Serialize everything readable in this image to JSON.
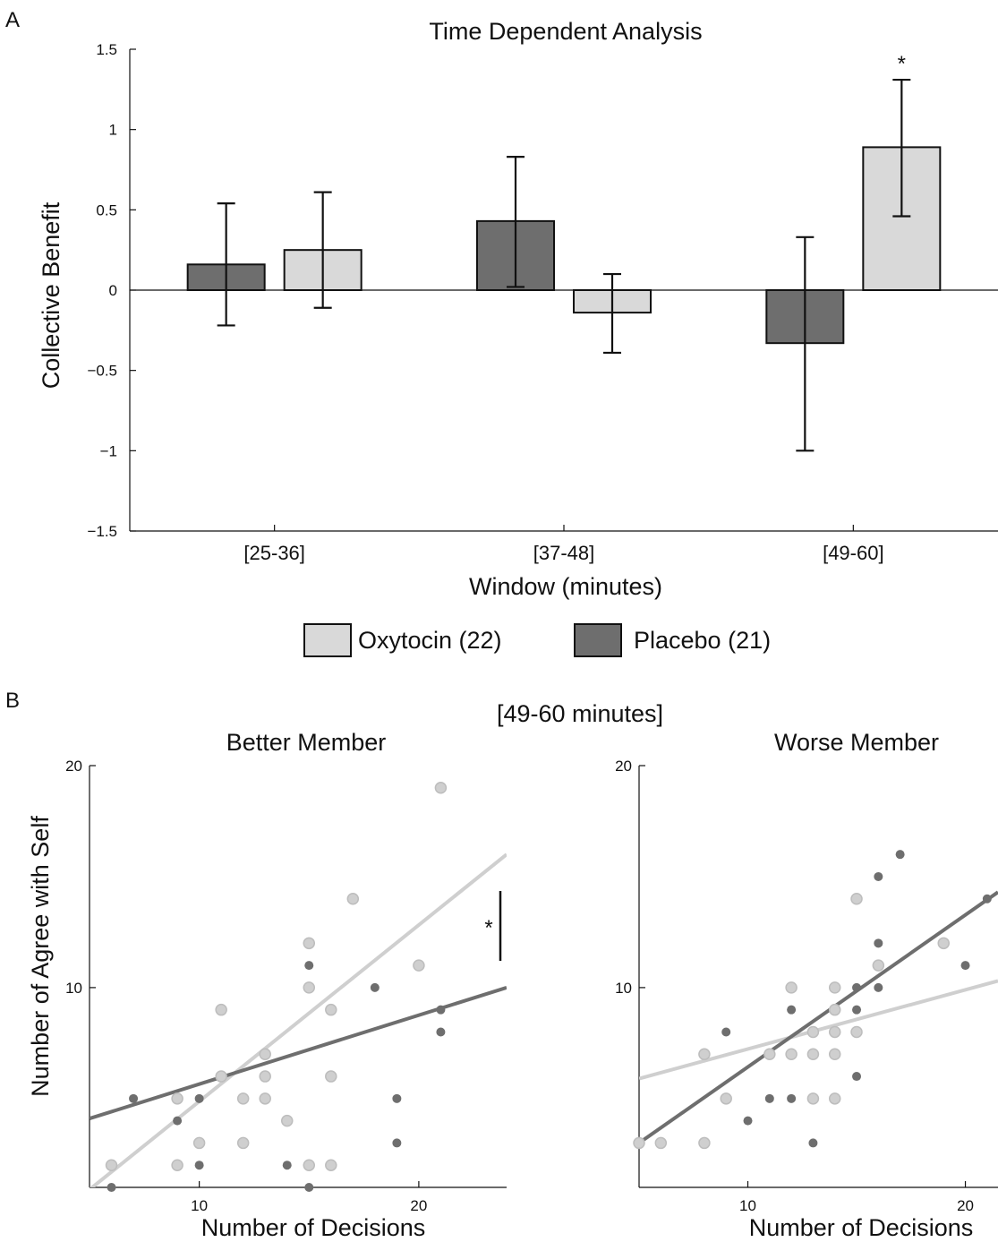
{
  "panel_a": {
    "letter": "A",
    "chart_data": {
      "type": "bar",
      "title": "Time Dependent Analysis",
      "xlabel": "Window (minutes)",
      "ylabel": "Collective Benefit",
      "categories": [
        "[25-36]",
        "[37-48]",
        "[49-60]"
      ],
      "ylim": [
        -1.5,
        1.5
      ],
      "yticks": [
        1.5,
        1,
        0.5,
        0,
        -0.5,
        -1,
        -1.5
      ],
      "ytick_labels": [
        "1.5",
        "1",
        "0.5",
        "0",
        "−0.5",
        "−1",
        "−1.5"
      ],
      "series": [
        {
          "name": "Placebo (21)",
          "color": "#6e6e6e",
          "values": [
            0.16,
            0.43,
            -0.33
          ],
          "err_low": [
            -0.22,
            0.02,
            -1.0
          ],
          "err_high": [
            0.54,
            0.83,
            0.33
          ]
        },
        {
          "name": "Oxytocin (22)",
          "color": "#d9d9d9",
          "values": [
            0.25,
            -0.14,
            0.89
          ],
          "err_low": [
            -0.11,
            -0.39,
            0.46
          ],
          "err_high": [
            0.61,
            0.1,
            1.31
          ]
        }
      ],
      "annotations": [
        {
          "text": "*",
          "category": "[49-60]",
          "series": "Oxytocin (22)"
        }
      ],
      "grid": false
    },
    "legend": [
      {
        "label": "Oxytocin (22)",
        "color": "#d9d9d9"
      },
      {
        "label": "Placebo (21)",
        "color": "#6e6e6e"
      }
    ]
  },
  "panel_b": {
    "letter": "B",
    "title": "[49-60 minutes]",
    "ylabel": "Number of Agree with Self",
    "xlabel": "Number of Decisions",
    "chart_data": [
      {
        "type": "scatter",
        "title": "Better Member",
        "xlabel": "Number of Decisions",
        "ylabel": "Number of Agree with Self",
        "xlim": [
          5,
          24
        ],
        "ylim": [
          1,
          20
        ],
        "xticks": [
          10,
          20
        ],
        "yticks": [
          10,
          20
        ],
        "series": [
          {
            "name": "Oxytocin",
            "color": "#cfcfcf",
            "points": [
              [
                6,
                2
              ],
              [
                9,
                2
              ],
              [
                9,
                5
              ],
              [
                10,
                3
              ],
              [
                11,
                9
              ],
              [
                11,
                6
              ],
              [
                12,
                5
              ],
              [
                12,
                3
              ],
              [
                13,
                7
              ],
              [
                13,
                6
              ],
              [
                13,
                5
              ],
              [
                14,
                4
              ],
              [
                15,
                12
              ],
              [
                15,
                10
              ],
              [
                15,
                2
              ],
              [
                16,
                9
              ],
              [
                16,
                6
              ],
              [
                16,
                2
              ],
              [
                17,
                14
              ],
              [
                20,
                11
              ],
              [
                21,
                19
              ]
            ],
            "fit": [
              [
                5,
                0.9
              ],
              [
                24,
                16
              ]
            ]
          },
          {
            "name": "Placebo",
            "color": "#6e6e6e",
            "points": [
              [
                6,
                1
              ],
              [
                7,
                5
              ],
              [
                9,
                4
              ],
              [
                10,
                5
              ],
              [
                10,
                2
              ],
              [
                14,
                2
              ],
              [
                15,
                11
              ],
              [
                15,
                1
              ],
              [
                18,
                10
              ],
              [
                19,
                5
              ],
              [
                19,
                3
              ],
              [
                21,
                9
              ],
              [
                21,
                8
              ]
            ],
            "fit": [
              [
                5,
                4.1
              ],
              [
                24,
                10
              ]
            ]
          }
        ],
        "annotations": [
          {
            "text": "*"
          }
        ]
      },
      {
        "type": "scatter",
        "title": "Worse Member",
        "xlabel": "Number of Decisions",
        "ylabel": "Number of Agree with Self",
        "xlim": [
          5,
          21.5
        ],
        "ylim": [
          1,
          20
        ],
        "xticks": [
          10,
          20
        ],
        "yticks": [
          10,
          20
        ],
        "series": [
          {
            "name": "Oxytocin",
            "color": "#cfcfcf",
            "points": [
              [
                5,
                3
              ],
              [
                6,
                3
              ],
              [
                8,
                3
              ],
              [
                8,
                7
              ],
              [
                9,
                5
              ],
              [
                11,
                7
              ],
              [
                12,
                10
              ],
              [
                12,
                7
              ],
              [
                13,
                8
              ],
              [
                13,
                7
              ],
              [
                13,
                5
              ],
              [
                14,
                10
              ],
              [
                14,
                9
              ],
              [
                14,
                8
              ],
              [
                14,
                7
              ],
              [
                14,
                5
              ],
              [
                15,
                14
              ],
              [
                15,
                8
              ],
              [
                16,
                11
              ],
              [
                19,
                12
              ]
            ],
            "fit": [
              [
                5,
                5.9
              ],
              [
                21.5,
                10.3
              ]
            ]
          },
          {
            "name": "Placebo",
            "color": "#6e6e6e",
            "points": [
              [
                9,
                8
              ],
              [
                10,
                4
              ],
              [
                11,
                5
              ],
              [
                12,
                9
              ],
              [
                12,
                5
              ],
              [
                13,
                3
              ],
              [
                15,
                10
              ],
              [
                15,
                9
              ],
              [
                15,
                6
              ],
              [
                16,
                15
              ],
              [
                16,
                12
              ],
              [
                16,
                10
              ],
              [
                17,
                16
              ],
              [
                20,
                11
              ],
              [
                21,
                14
              ]
            ],
            "fit": [
              [
                5,
                3
              ],
              [
                21.5,
                14.3
              ]
            ]
          }
        ]
      }
    ]
  }
}
